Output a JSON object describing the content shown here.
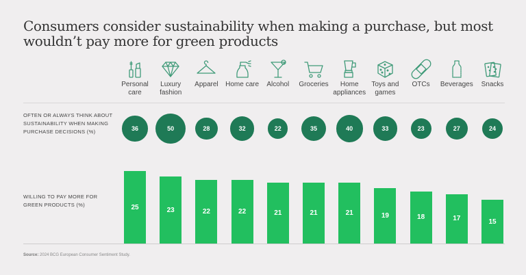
{
  "title": "Consumers consider sustainability when making a purchase, but most wouldn’t pay more for green products",
  "chart_data": {
    "type": "bar",
    "title": "Consumers consider sustainability when making a purchase, but most wouldn’t pay more for green products",
    "categories": [
      "Personal care",
      "Luxury fashion",
      "Apparel",
      "Home care",
      "Alcohol",
      "Groceries",
      "Home appliances",
      "Toys and games",
      "OTCs",
      "Beverages",
      "Snacks"
    ],
    "category_icons": [
      "cosmetics-icon",
      "diamond-icon",
      "hanger-icon",
      "spray-bottle-icon",
      "cocktail-icon",
      "shopping-cart-icon",
      "blender-icon",
      "dice-icon",
      "bandage-icon",
      "bottle-icon",
      "crackers-icon"
    ],
    "series": [
      {
        "name": "OFTEN OR ALWAYS THINK ABOUT SUSTAINABILITY WHEN MAKING PURCHASE DECISIONS (%)",
        "mark": "bubble",
        "color": "#1f7a56",
        "values": [
          36,
          50,
          28,
          32,
          22,
          35,
          40,
          33,
          23,
          27,
          24
        ]
      },
      {
        "name": "WILLING TO PAY MORE FOR GREEN PRODUCTS (%)",
        "mark": "bar",
        "color": "#22bf5f",
        "values": [
          25,
          23,
          22,
          22,
          21,
          21,
          21,
          19,
          18,
          17,
          15
        ]
      }
    ],
    "xlabel": "",
    "ylabel": "",
    "grid": false
  },
  "source_label": "Source:",
  "source_text": "2024 BCG European Consumer Sentiment Study."
}
